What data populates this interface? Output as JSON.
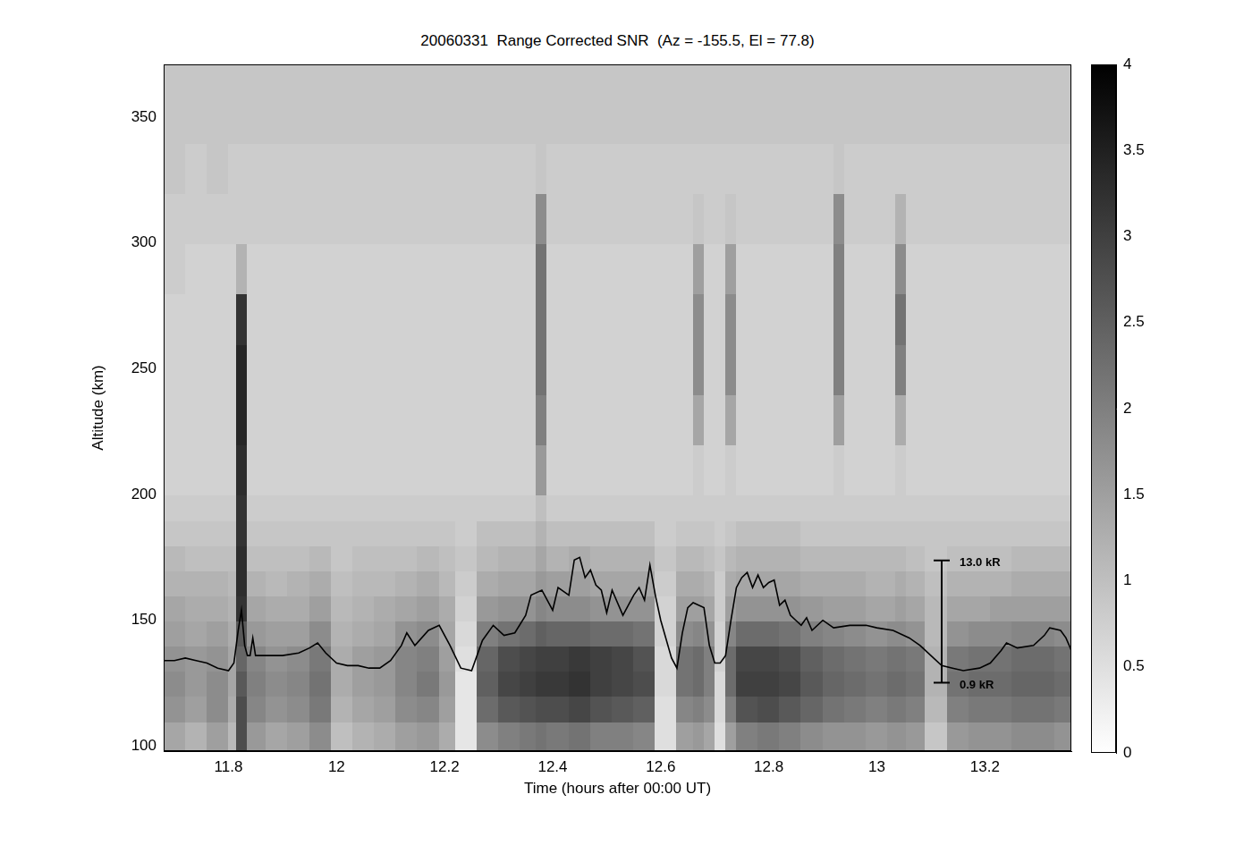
{
  "chart_data": {
    "type": "heatmap",
    "title": "20060331  Range Corrected SNR  (Az = -155.5, El = 77.8)",
    "x_label": "Time (hours after 00:00 UT)",
    "y_label": "Altitude (km)",
    "xlim": [
      11.68,
      13.36
    ],
    "xticks": [
      11.8,
      12,
      12.2,
      12.4,
      12.6,
      12.8,
      13,
      13.2
    ],
    "ylim": [
      98,
      371
    ],
    "yticks": [
      100,
      150,
      200,
      250,
      300,
      350
    ],
    "grid": false,
    "cells": {
      "x_edges": [
        11.68,
        11.72,
        11.76,
        11.8,
        11.815,
        11.835,
        11.87,
        11.91,
        11.95,
        11.99,
        12.03,
        12.07,
        12.11,
        12.15,
        12.19,
        12.22,
        12.26,
        12.3,
        12.34,
        12.37,
        12.39,
        12.43,
        12.47,
        12.51,
        12.55,
        12.59,
        12.63,
        12.66,
        12.68,
        12.7,
        12.72,
        12.74,
        12.78,
        12.82,
        12.86,
        12.9,
        12.92,
        12.94,
        12.98,
        13.02,
        13.035,
        13.055,
        13.09,
        13.13,
        13.17,
        13.21,
        13.25,
        13.29,
        13.33,
        13.36
      ],
      "y_edges": [
        98,
        110,
        120,
        130,
        140,
        150,
        160,
        170,
        180,
        190,
        200,
        220,
        240,
        260,
        280,
        300,
        320,
        340,
        371
      ],
      "columns": [
        [
          1.4,
          1.7,
          1.8,
          1.7,
          1.5,
          1.4,
          1.2,
          1.1,
          0.9,
          0.8,
          0.7,
          0.7,
          0.7,
          0.7,
          0.8,
          0.8,
          0.9,
          0.9
        ],
        [
          1.2,
          1.5,
          1.6,
          1.6,
          1.4,
          1.3,
          1.2,
          1.0,
          0.9,
          0.8,
          0.7,
          0.7,
          0.7,
          0.7,
          0.7,
          0.8,
          0.8,
          0.9
        ],
        [
          1.5,
          1.8,
          1.8,
          1.7,
          1.5,
          1.3,
          1.2,
          1.0,
          0.9,
          0.8,
          0.7,
          0.7,
          0.7,
          0.7,
          0.7,
          0.8,
          0.9,
          0.9
        ],
        [
          1.1,
          1.3,
          1.4,
          1.4,
          1.3,
          1.2,
          1.1,
          1.0,
          0.9,
          0.8,
          0.7,
          0.7,
          0.7,
          0.7,
          0.7,
          0.8,
          0.8,
          0.9
        ],
        [
          2.8,
          2.8,
          2.6,
          2.4,
          2.6,
          3.2,
          3.3,
          3.3,
          3.2,
          3.2,
          3.3,
          3.4,
          3.4,
          3.2,
          1.2,
          0.8,
          0.8,
          0.9
        ],
        [
          1.6,
          1.9,
          2.0,
          1.9,
          1.6,
          1.4,
          1.2,
          1.0,
          0.9,
          0.8,
          0.7,
          0.7,
          0.7,
          0.7,
          0.7,
          0.8,
          0.8,
          0.9
        ],
        [
          1.4,
          1.7,
          1.8,
          1.7,
          1.5,
          1.3,
          1.1,
          1.0,
          0.9,
          0.8,
          0.7,
          0.7,
          0.7,
          0.7,
          0.7,
          0.8,
          0.8,
          0.9
        ],
        [
          1.5,
          1.8,
          1.9,
          1.8,
          1.5,
          1.3,
          1.2,
          1.0,
          0.9,
          0.8,
          0.7,
          0.7,
          0.7,
          0.7,
          0.7,
          0.8,
          0.8,
          0.9
        ],
        [
          1.8,
          2.1,
          2.2,
          2.1,
          1.8,
          1.5,
          1.3,
          1.1,
          0.9,
          0.8,
          0.7,
          0.7,
          0.7,
          0.7,
          0.7,
          0.8,
          0.8,
          0.9
        ],
        [
          1.0,
          1.2,
          1.3,
          1.3,
          1.2,
          1.1,
          1.0,
          0.9,
          0.9,
          0.8,
          0.7,
          0.7,
          0.7,
          0.7,
          0.7,
          0.8,
          0.8,
          0.9
        ],
        [
          1.2,
          1.4,
          1.5,
          1.5,
          1.3,
          1.2,
          1.1,
          1.0,
          0.9,
          0.8,
          0.7,
          0.7,
          0.7,
          0.7,
          0.7,
          0.8,
          0.8,
          0.9
        ],
        [
          1.3,
          1.5,
          1.6,
          1.6,
          1.4,
          1.3,
          1.1,
          1.0,
          0.9,
          0.8,
          0.7,
          0.7,
          0.7,
          0.7,
          0.7,
          0.8,
          0.8,
          0.9
        ],
        [
          1.5,
          1.8,
          1.9,
          1.9,
          1.7,
          1.4,
          1.2,
          1.0,
          0.9,
          0.8,
          0.7,
          0.7,
          0.7,
          0.7,
          0.7,
          0.8,
          0.8,
          0.9
        ],
        [
          1.6,
          1.9,
          2.1,
          2.0,
          1.8,
          1.5,
          1.3,
          1.1,
          0.9,
          0.8,
          0.7,
          0.7,
          0.7,
          0.7,
          0.7,
          0.8,
          0.8,
          0.9
        ],
        [
          1.3,
          1.5,
          1.6,
          1.5,
          1.4,
          1.3,
          1.1,
          1.0,
          0.9,
          0.8,
          0.7,
          0.7,
          0.7,
          0.7,
          0.7,
          0.8,
          0.8,
          0.9
        ],
        [
          0.4,
          0.4,
          0.4,
          0.5,
          0.6,
          0.7,
          0.8,
          0.9,
          0.8,
          0.8,
          0.7,
          0.7,
          0.7,
          0.7,
          0.7,
          0.8,
          0.8,
          0.9
        ],
        [
          1.8,
          2.3,
          2.5,
          2.4,
          2.0,
          1.6,
          1.3,
          1.1,
          1.0,
          0.8,
          0.7,
          0.7,
          0.7,
          0.7,
          0.7,
          0.8,
          0.8,
          0.9
        ],
        [
          2.0,
          2.6,
          2.9,
          2.8,
          2.2,
          1.7,
          1.4,
          1.2,
          1.0,
          0.8,
          0.7,
          0.7,
          0.7,
          0.7,
          0.7,
          0.8,
          0.8,
          0.9
        ],
        [
          2.1,
          2.7,
          3.0,
          2.9,
          2.3,
          1.7,
          1.4,
          1.2,
          1.0,
          0.8,
          0.7,
          0.7,
          0.7,
          0.7,
          0.7,
          0.8,
          0.8,
          0.9
        ],
        [
          2.2,
          2.8,
          3.1,
          3.0,
          2.5,
          1.9,
          1.6,
          1.4,
          1.2,
          1.0,
          1.6,
          2.0,
          2.2,
          2.2,
          2.2,
          1.8,
          0.9,
          0.9
        ],
        [
          2.1,
          2.8,
          3.1,
          3.0,
          2.4,
          1.8,
          1.5,
          1.2,
          1.0,
          0.8,
          0.7,
          0.7,
          0.7,
          0.7,
          0.7,
          0.8,
          0.8,
          0.9
        ],
        [
          2.2,
          2.9,
          3.2,
          3.1,
          2.4,
          1.8,
          1.5,
          1.3,
          1.0,
          0.8,
          0.7,
          0.7,
          0.7,
          0.7,
          0.7,
          0.8,
          0.8,
          0.9
        ],
        [
          2.0,
          2.7,
          3.0,
          3.0,
          2.3,
          1.7,
          1.4,
          1.2,
          1.0,
          0.8,
          0.7,
          0.7,
          0.7,
          0.7,
          0.7,
          0.8,
          0.8,
          0.9
        ],
        [
          2.0,
          2.6,
          2.9,
          2.9,
          2.3,
          1.7,
          1.4,
          1.2,
          1.0,
          0.8,
          0.7,
          0.7,
          0.7,
          0.7,
          0.7,
          0.8,
          0.8,
          0.9
        ],
        [
          1.9,
          2.5,
          2.8,
          2.7,
          2.2,
          1.7,
          1.4,
          1.2,
          1.0,
          0.8,
          0.7,
          0.7,
          0.7,
          0.7,
          0.7,
          0.8,
          0.8,
          0.9
        ],
        [
          0.5,
          0.5,
          0.6,
          0.6,
          0.7,
          0.7,
          0.8,
          0.9,
          0.8,
          0.8,
          0.7,
          0.7,
          0.7,
          0.7,
          0.7,
          0.8,
          0.8,
          0.9
        ],
        [
          1.5,
          1.9,
          2.2,
          2.2,
          1.8,
          1.5,
          1.3,
          1.1,
          0.9,
          0.8,
          0.7,
          0.7,
          0.7,
          0.7,
          0.7,
          0.8,
          0.8,
          0.9
        ],
        [
          1.6,
          2.0,
          2.3,
          2.3,
          1.9,
          1.5,
          1.3,
          1.1,
          0.9,
          0.8,
          0.8,
          1.4,
          1.8,
          1.8,
          1.5,
          0.9,
          0.8,
          0.9
        ],
        [
          1.4,
          1.8,
          2.0,
          2.0,
          1.7,
          1.4,
          1.2,
          1.0,
          0.9,
          0.8,
          0.7,
          0.7,
          0.7,
          0.7,
          0.7,
          0.8,
          0.8,
          0.9
        ],
        [
          0.5,
          0.6,
          0.6,
          0.7,
          0.7,
          0.8,
          0.8,
          0.9,
          0.8,
          0.8,
          0.7,
          0.7,
          0.7,
          0.7,
          0.7,
          0.8,
          0.8,
          0.9
        ],
        [
          1.5,
          2.0,
          2.3,
          2.3,
          1.9,
          1.5,
          1.3,
          1.1,
          0.9,
          0.8,
          0.8,
          1.4,
          1.8,
          1.8,
          1.5,
          0.9,
          0.8,
          0.9
        ],
        [
          2.0,
          2.7,
          3.0,
          2.9,
          2.3,
          1.7,
          1.4,
          1.2,
          1.0,
          0.8,
          0.7,
          0.7,
          0.7,
          0.7,
          0.7,
          0.8,
          0.8,
          0.9
        ],
        [
          2.1,
          2.8,
          3.0,
          2.9,
          2.3,
          1.7,
          1.4,
          1.2,
          1.0,
          0.8,
          0.7,
          0.7,
          0.7,
          0.7,
          0.7,
          0.8,
          0.8,
          0.9
        ],
        [
          2.0,
          2.6,
          2.9,
          2.8,
          2.2,
          1.7,
          1.4,
          1.2,
          1.0,
          0.8,
          0.7,
          0.7,
          0.7,
          0.7,
          0.7,
          0.8,
          0.8,
          0.9
        ],
        [
          1.8,
          2.4,
          2.6,
          2.5,
          2.0,
          1.6,
          1.3,
          1.1,
          0.9,
          0.8,
          0.7,
          0.7,
          0.7,
          0.7,
          0.7,
          0.8,
          0.8,
          0.9
        ],
        [
          1.7,
          2.2,
          2.4,
          2.3,
          1.9,
          1.5,
          1.3,
          1.1,
          0.9,
          0.8,
          0.7,
          0.7,
          0.7,
          0.7,
          0.7,
          0.8,
          0.8,
          0.9
        ],
        [
          1.7,
          2.2,
          2.4,
          2.3,
          1.9,
          1.5,
          1.3,
          1.1,
          0.9,
          0.8,
          0.8,
          1.5,
          2.0,
          2.0,
          2.0,
          1.8,
          0.9,
          0.9
        ],
        [
          1.7,
          2.1,
          2.3,
          2.2,
          1.8,
          1.5,
          1.3,
          1.1,
          0.9,
          0.8,
          0.7,
          0.7,
          0.7,
          0.7,
          0.7,
          0.8,
          0.8,
          0.9
        ],
        [
          1.6,
          2.0,
          2.2,
          2.1,
          1.7,
          1.4,
          1.2,
          1.1,
          0.9,
          0.8,
          0.7,
          0.7,
          0.7,
          0.7,
          0.7,
          0.8,
          0.8,
          0.9
        ],
        [
          1.7,
          2.1,
          2.3,
          2.2,
          1.8,
          1.4,
          1.2,
          1.1,
          0.9,
          0.8,
          0.7,
          0.7,
          0.7,
          0.7,
          0.7,
          0.8,
          0.8,
          0.9
        ],
        [
          1.7,
          2.1,
          2.3,
          2.2,
          1.8,
          1.5,
          1.3,
          1.1,
          0.9,
          0.8,
          0.8,
          1.3,
          2.0,
          2.2,
          1.8,
          1.2,
          0.8,
          0.9
        ],
        [
          1.6,
          2.0,
          2.2,
          2.1,
          1.7,
          1.4,
          1.2,
          1.0,
          0.9,
          0.8,
          0.7,
          0.7,
          0.7,
          0.7,
          0.7,
          0.8,
          0.8,
          0.9
        ],
        [
          0.9,
          1.1,
          1.2,
          1.2,
          1.1,
          1.1,
          1.0,
          0.9,
          0.9,
          0.8,
          0.7,
          0.7,
          0.7,
          0.7,
          0.7,
          0.8,
          0.8,
          0.9
        ],
        [
          1.6,
          2.0,
          2.2,
          2.1,
          1.7,
          1.4,
          1.2,
          1.0,
          0.9,
          0.8,
          0.7,
          0.7,
          0.7,
          0.7,
          0.7,
          0.8,
          0.8,
          0.9
        ],
        [
          1.7,
          2.1,
          2.3,
          2.2,
          1.8,
          1.4,
          1.2,
          1.0,
          0.9,
          0.8,
          0.7,
          0.7,
          0.7,
          0.7,
          0.7,
          0.8,
          0.8,
          0.9
        ],
        [
          1.7,
          2.1,
          2.3,
          2.2,
          1.8,
          1.5,
          1.2,
          1.0,
          0.9,
          0.8,
          0.7,
          0.7,
          0.7,
          0.7,
          0.7,
          0.8,
          0.8,
          0.9
        ],
        [
          1.8,
          2.2,
          2.4,
          2.3,
          1.9,
          1.5,
          1.3,
          1.1,
          0.9,
          0.8,
          0.7,
          0.7,
          0.7,
          0.7,
          0.7,
          0.8,
          0.8,
          0.9
        ],
        [
          1.8,
          2.2,
          2.4,
          2.3,
          1.9,
          1.5,
          1.3,
          1.1,
          0.9,
          0.8,
          0.7,
          0.7,
          0.7,
          0.7,
          0.7,
          0.8,
          0.8,
          0.9
        ],
        [
          1.7,
          2.1,
          2.3,
          2.2,
          1.8,
          1.5,
          1.3,
          1.1,
          0.9,
          0.8,
          0.7,
          0.7,
          0.7,
          0.7,
          0.7,
          0.8,
          0.8,
          0.9
        ]
      ]
    },
    "colorbar": {
      "range": [
        0,
        4
      ],
      "ticks": [
        0,
        0.5,
        1,
        1.5,
        2,
        2.5,
        3,
        3.5,
        4
      ]
    },
    "line": {
      "color": "#000000",
      "x": [
        11.68,
        11.7,
        11.72,
        11.74,
        11.76,
        11.78,
        11.8,
        11.81,
        11.818,
        11.824,
        11.83,
        11.835,
        11.84,
        11.845,
        11.85,
        11.87,
        11.9,
        11.93,
        11.95,
        11.965,
        11.98,
        12.0,
        12.02,
        12.04,
        12.06,
        12.08,
        12.1,
        12.12,
        12.13,
        12.145,
        12.17,
        12.19,
        12.21,
        12.23,
        12.25,
        12.27,
        12.29,
        12.31,
        12.33,
        12.35,
        12.36,
        12.38,
        12.4,
        12.41,
        12.43,
        12.44,
        12.45,
        12.46,
        12.47,
        12.48,
        12.49,
        12.5,
        12.51,
        12.53,
        12.55,
        12.56,
        12.57,
        12.58,
        12.59,
        12.6,
        12.62,
        12.63,
        12.64,
        12.65,
        12.66,
        12.68,
        12.69,
        12.7,
        12.71,
        12.72,
        12.73,
        12.74,
        12.75,
        12.76,
        12.77,
        12.78,
        12.79,
        12.8,
        12.81,
        12.82,
        12.83,
        12.84,
        12.85,
        12.86,
        12.87,
        12.88,
        12.9,
        12.92,
        12.95,
        12.98,
        13.0,
        13.03,
        13.06,
        13.08,
        13.1,
        13.12,
        13.14,
        13.16,
        13.19,
        13.21,
        13.23,
        13.24,
        13.26,
        13.29,
        13.31,
        13.32,
        13.34,
        13.35,
        13.36
      ],
      "values": [
        134,
        134,
        135,
        134,
        133,
        131,
        130,
        133,
        146,
        154,
        140,
        136,
        136,
        143,
        136,
        136,
        136,
        137,
        139,
        141,
        137,
        133,
        132,
        132,
        131,
        131,
        134,
        140,
        145,
        140,
        146,
        148,
        140,
        131,
        130,
        142,
        148,
        144,
        145,
        152,
        160,
        162,
        154,
        163,
        160,
        174,
        175,
        167,
        170,
        164,
        162,
        153,
        162,
        152,
        160,
        163,
        158,
        172,
        160,
        150,
        135,
        131,
        145,
        155,
        157,
        155,
        140,
        133,
        133,
        136,
        150,
        163,
        167,
        169,
        163,
        168,
        163,
        165,
        166,
        156,
        158,
        152,
        150,
        148,
        151,
        146,
        150,
        147,
        148,
        148,
        147,
        146,
        143,
        140,
        136,
        132,
        131,
        130,
        131,
        133,
        138,
        141,
        139,
        140,
        144,
        147,
        146,
        143,
        138
      ]
    },
    "annotations": [
      {
        "x": 13.12,
        "y": 125.2,
        "label": "0.9 kR"
      },
      {
        "x": 13.12,
        "y": 173.8,
        "label": "13.0 kR"
      }
    ]
  }
}
